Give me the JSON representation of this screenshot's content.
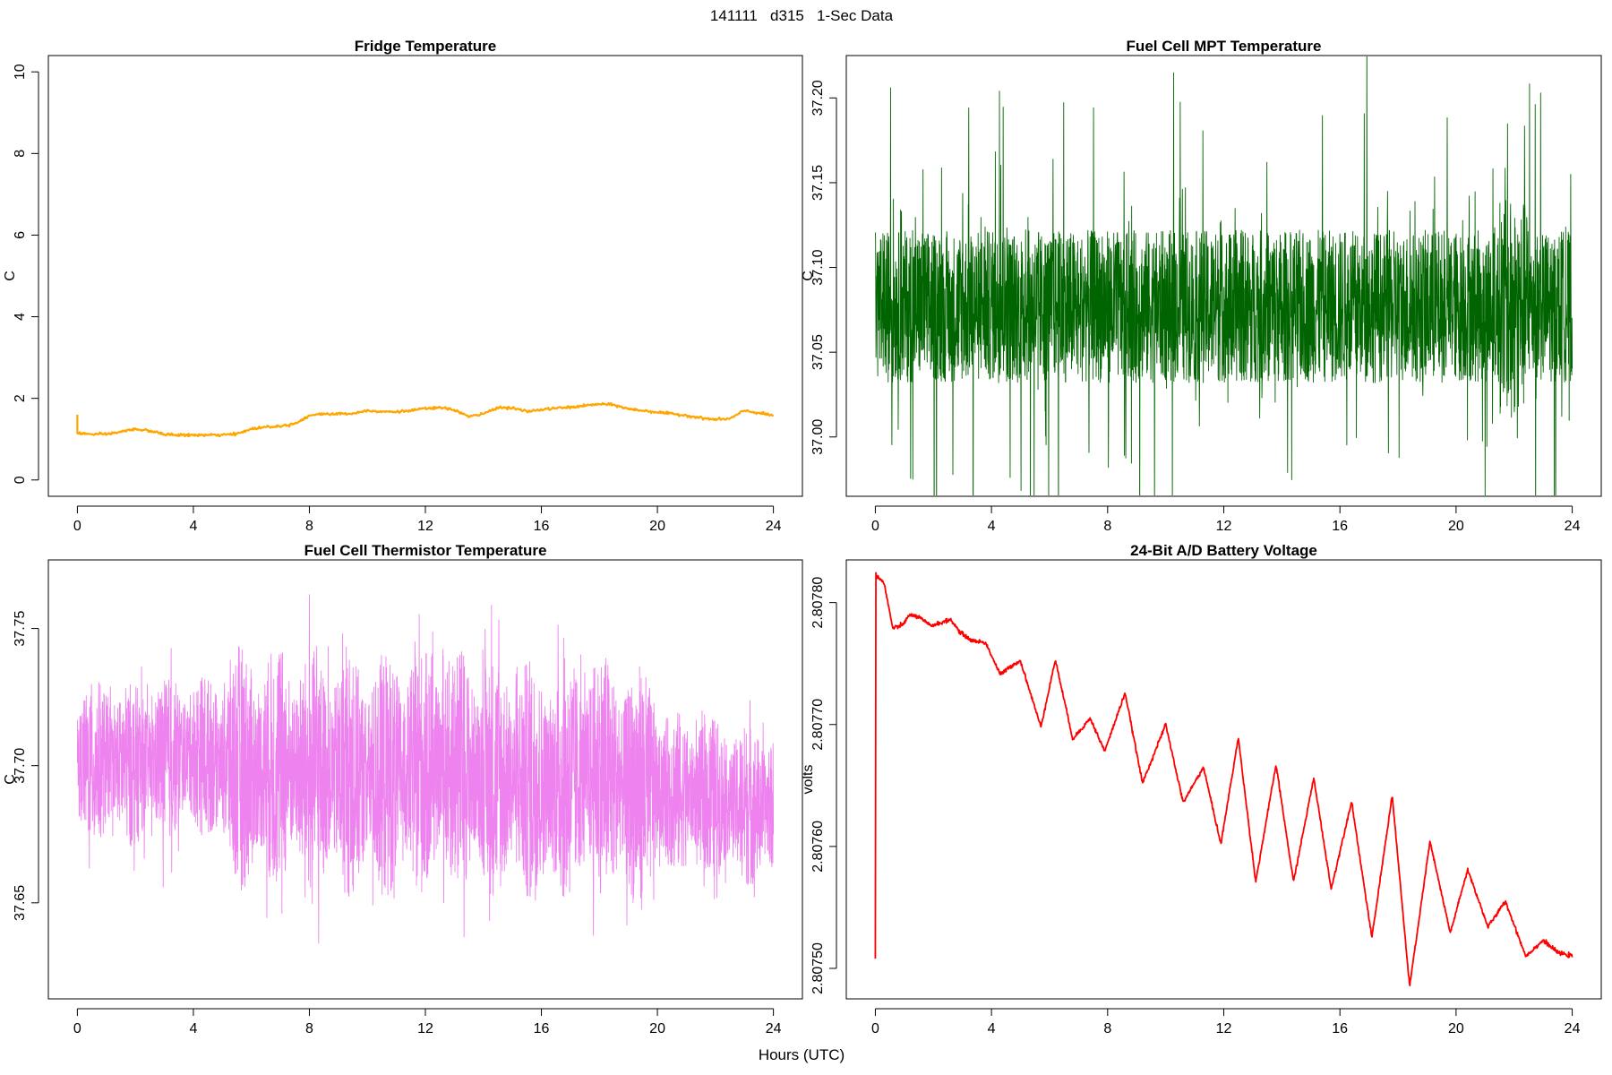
{
  "page": {
    "title": "141111   d315   1-Sec Data",
    "xlabel": "Hours (UTC)"
  },
  "chart_data": [
    {
      "type": "line",
      "title": "Fridge Temperature",
      "xlabel": "Hours (UTC)",
      "ylabel": "C",
      "xlim": [
        -1.0,
        25.0
      ],
      "ylim": [
        -0.4,
        10.4
      ],
      "xticks": [
        0,
        4,
        8,
        12,
        16,
        20,
        24
      ],
      "yticks": [
        0,
        2,
        4,
        6,
        8,
        10
      ],
      "ytick_labels": [
        "0",
        "2",
        "4",
        "6",
        "8",
        "10"
      ],
      "color": "#FFA500",
      "noise": 0.015,
      "series": [
        {
          "x": [
            0,
            0.5,
            1,
            1.5,
            2,
            2.5,
            3,
            3.5,
            4,
            4.5,
            5,
            5.5,
            6,
            6.5,
            7,
            7.5,
            8,
            8.5,
            9,
            9.5,
            10,
            10.5,
            11,
            11.5,
            12,
            12.5,
            13,
            13.5,
            14,
            14.5,
            15,
            15.5,
            16,
            16.5,
            17,
            17.5,
            18,
            18.5,
            19,
            19.5,
            20,
            20.5,
            21,
            21.5,
            22,
            22.5,
            23,
            23.5,
            24
          ],
          "y": [
            1.15,
            1.12,
            1.12,
            1.18,
            1.25,
            1.2,
            1.12,
            1.1,
            1.1,
            1.1,
            1.1,
            1.13,
            1.25,
            1.3,
            1.32,
            1.38,
            1.58,
            1.62,
            1.62,
            1.63,
            1.7,
            1.68,
            1.67,
            1.7,
            1.75,
            1.77,
            1.72,
            1.55,
            1.62,
            1.78,
            1.76,
            1.68,
            1.72,
            1.76,
            1.78,
            1.82,
            1.86,
            1.84,
            1.74,
            1.7,
            1.66,
            1.62,
            1.58,
            1.52,
            1.48,
            1.5,
            1.7,
            1.64,
            1.58
          ]
        }
      ]
    },
    {
      "type": "line",
      "title": "Fuel Cell MPT Temperature",
      "xlabel": "Hours (UTC)",
      "ylabel": "C",
      "xlim": [
        -1.0,
        25.0
      ],
      "ylim": [
        36.965,
        37.225
      ],
      "xticks": [
        0,
        4,
        8,
        12,
        16,
        20,
        24
      ],
      "yticks": [
        37.0,
        37.05,
        37.1,
        37.15,
        37.2
      ],
      "ytick_labels": [
        "37.00",
        "37.05",
        "37.10",
        "37.15",
        "37.20"
      ],
      "color": "#006400",
      "noise": 0.045,
      "series": [
        {
          "x": [
            0,
            24
          ],
          "y": [
            37.077,
            37.077
          ]
        }
      ]
    },
    {
      "type": "line",
      "title": "Fuel Cell Thermistor Temperature",
      "xlabel": "Hours (UTC)",
      "ylabel": "C",
      "xlim": [
        -1.0,
        25.0
      ],
      "ylim": [
        37.615,
        37.775
      ],
      "xticks": [
        0,
        4,
        8,
        12,
        16,
        20,
        24
      ],
      "yticks": [
        37.65,
        37.7,
        37.75
      ],
      "ytick_labels": [
        "37.65",
        "37.70",
        "37.75"
      ],
      "color": "#EE82EE",
      "noise": 0.03,
      "series": [
        {
          "x": [
            0,
            1,
            2,
            3,
            4,
            5,
            6,
            7,
            8,
            9,
            10,
            11,
            12,
            13,
            14,
            15,
            16,
            17,
            18,
            19,
            20,
            21,
            22,
            23,
            24
          ],
          "y": [
            37.7,
            37.702,
            37.7,
            37.702,
            37.705,
            37.702,
            37.698,
            37.7,
            37.697,
            37.697,
            37.696,
            37.697,
            37.698,
            37.7,
            37.697,
            37.695,
            37.694,
            37.695,
            37.698,
            37.692,
            37.692,
            37.69,
            37.688,
            37.686,
            37.685
          ]
        }
      ]
    },
    {
      "type": "line",
      "title": "24-Bit A/D Battery Voltage",
      "xlabel": "Hours (UTC)",
      "ylabel": "volts",
      "xlim": [
        -1.0,
        25.0
      ],
      "ylim": [
        2.807475,
        2.807835
      ],
      "xticks": [
        0,
        4,
        8,
        12,
        16,
        20,
        24
      ],
      "yticks": [
        2.8075,
        2.8076,
        2.8077,
        2.8078
      ],
      "ytick_labels": [
        "2.80750",
        "2.80760",
        "2.80770",
        "2.80780"
      ],
      "color": "#FF0000",
      "noise": 8e-07,
      "series": [
        {
          "x": [
            0,
            0.02,
            0.05,
            0.3,
            0.6,
            0.9,
            1.2,
            1.5,
            1.9,
            2.2,
            2.6,
            2.9,
            3.3,
            3.8,
            4.3,
            4.8,
            5.0,
            5.7,
            6.2,
            6.8,
            7.4,
            7.9,
            8.6,
            9.2,
            10.0,
            10.6,
            11.3,
            11.9,
            12.5,
            13.1,
            13.8,
            14.4,
            15.1,
            15.7,
            16.4,
            17.1,
            17.8,
            18.4,
            19.1,
            19.8,
            20.4,
            21.1,
            21.7,
            22.4,
            23.0,
            23.5,
            24.0
          ],
          "y": [
            2.807508,
            2.807823,
            2.807822,
            2.807816,
            2.807779,
            2.807781,
            2.80779,
            2.807788,
            2.807781,
            2.807783,
            2.807786,
            2.807776,
            2.807769,
            2.807767,
            2.807741,
            2.80775,
            2.807752,
            2.807698,
            2.807753,
            2.807688,
            2.807705,
            2.807678,
            2.807726,
            2.807652,
            2.8077,
            2.807636,
            2.807665,
            2.807602,
            2.807689,
            2.807571,
            2.807667,
            2.807571,
            2.807656,
            2.807565,
            2.807637,
            2.807525,
            2.807642,
            2.807485,
            2.807604,
            2.807529,
            2.807581,
            2.807534,
            2.807555,
            2.80751,
            2.807523,
            2.807513,
            2.80751
          ]
        }
      ]
    }
  ]
}
